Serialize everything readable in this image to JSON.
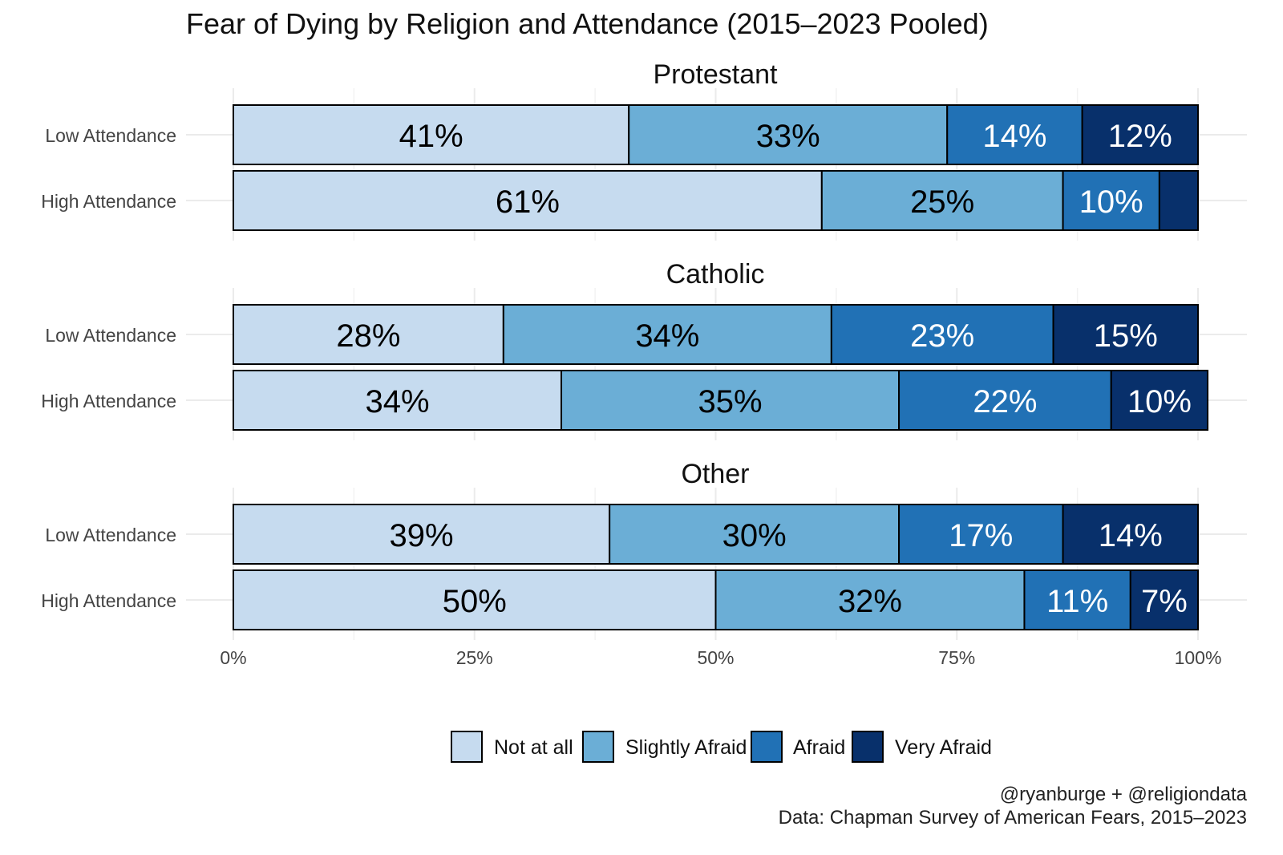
{
  "chart_data": {
    "type": "bar",
    "orientation": "horizontal-stacked-100",
    "title": "Fear of Dying by Religion and Attendance (2015–2023 Pooled)",
    "xlabel": "",
    "ylabel": "",
    "xlim": [
      0,
      100
    ],
    "x_ticks": [
      "0%",
      "25%",
      "50%",
      "75%",
      "100%"
    ],
    "grid": true,
    "legend_position": "bottom",
    "categories_legend": [
      "Not at all",
      "Slightly Afraid",
      "Afraid",
      "Very Afraid"
    ],
    "colors": [
      "#c6dbef",
      "#6baed6",
      "#2171b5",
      "#08306b"
    ],
    "label_colors": [
      "#000000",
      "#000000",
      "#ffffff",
      "#ffffff"
    ],
    "panels": [
      {
        "title": "Protestant",
        "rows": [
          {
            "label": "Low Attendance",
            "values": [
              41,
              33,
              14,
              12
            ],
            "labels": [
              "41%",
              "33%",
              "14%",
              "12%"
            ]
          },
          {
            "label": "High Attendance",
            "values": [
              61,
              25,
              10,
              4
            ],
            "labels": [
              "61%",
              "25%",
              "10%",
              ""
            ]
          }
        ]
      },
      {
        "title": "Catholic",
        "rows": [
          {
            "label": "Low Attendance",
            "values": [
              28,
              34,
              23,
              15
            ],
            "labels": [
              "28%",
              "34%",
              "23%",
              "15%"
            ]
          },
          {
            "label": "High Attendance",
            "values": [
              34,
              35,
              22,
              10
            ],
            "labels": [
              "34%",
              "35%",
              "22%",
              "10%"
            ]
          }
        ]
      },
      {
        "title": "Other",
        "rows": [
          {
            "label": "Low Attendance",
            "values": [
              39,
              30,
              17,
              14
            ],
            "labels": [
              "39%",
              "30%",
              "17%",
              "14%"
            ]
          },
          {
            "label": "High Attendance",
            "values": [
              50,
              32,
              11,
              7
            ],
            "labels": [
              "50%",
              "32%",
              "11%",
              "7%"
            ]
          }
        ]
      }
    ],
    "caption": [
      "@ryanburge + @religiondata",
      "Data: Chapman Survey of American Fears, 2015–2023"
    ]
  }
}
